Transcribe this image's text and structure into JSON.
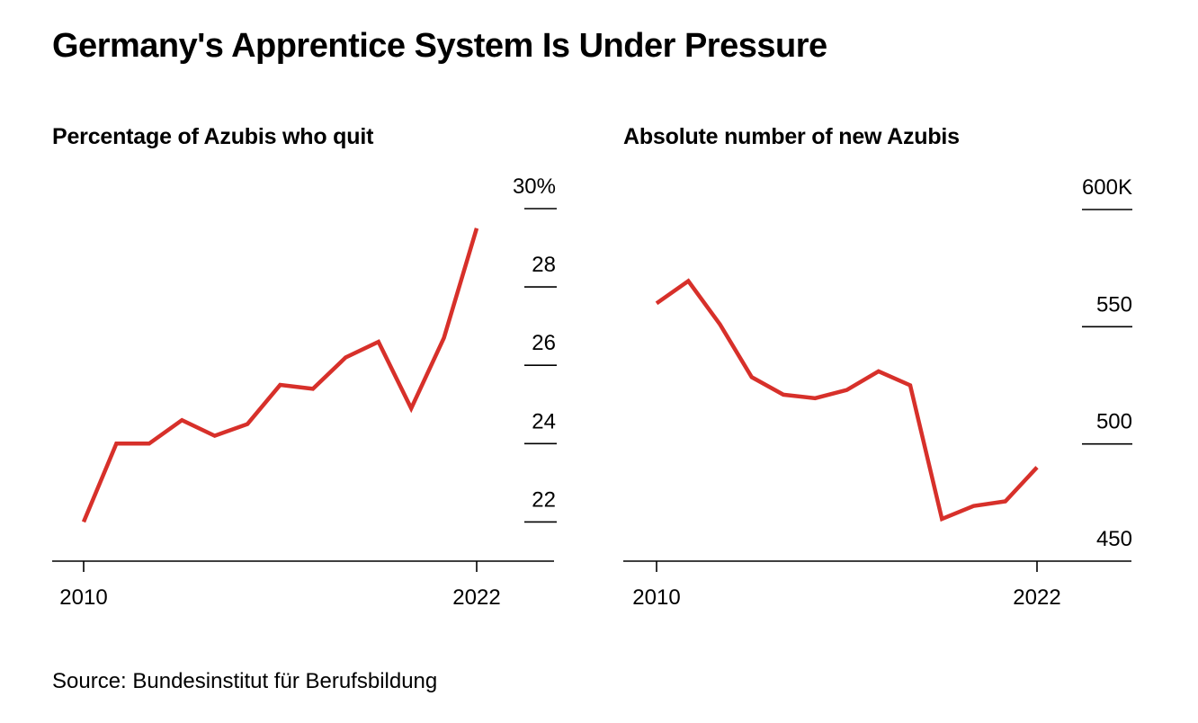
{
  "title": "Germany's Apprentice System Is Under Pressure",
  "source": "Source: Bundesinstitut für Berufsbildung",
  "colors": {
    "line": "#d7302a",
    "axis": "#000000",
    "text": "#000000"
  },
  "chart_data": [
    {
      "type": "line",
      "title": "Percentage of Azubis who quit",
      "xlabel": "",
      "ylabel": "",
      "x": [
        2010,
        2011,
        2012,
        2013,
        2014,
        2015,
        2016,
        2017,
        2018,
        2019,
        2020,
        2021,
        2022
      ],
      "values": [
        22.0,
        24.0,
        24.0,
        24.6,
        24.2,
        24.5,
        25.5,
        25.4,
        26.2,
        26.6,
        24.9,
        26.7,
        29.5
      ],
      "xlim": [
        2010,
        2022
      ],
      "ylim": [
        21,
        30
      ],
      "x_tick_labels": [
        {
          "x": 2010,
          "label": "2010"
        },
        {
          "x": 2022,
          "label": "2022"
        }
      ],
      "y_tick_labels": [
        {
          "y": 22,
          "label": "22"
        },
        {
          "y": 24,
          "label": "24"
        },
        {
          "y": 26,
          "label": "26"
        },
        {
          "y": 28,
          "label": "28"
        },
        {
          "y": 30,
          "label": "30%"
        }
      ],
      "grid": false
    },
    {
      "type": "line",
      "title": "Absolute number of new Azubis",
      "xlabel": "",
      "ylabel": "",
      "x": [
        2010,
        2011,
        2012,
        2013,
        2014,
        2015,
        2016,
        2017,
        2018,
        2019,
        2020,
        2021,
        2022
      ],
      "values": [
        560,
        569.5,
        551,
        528.5,
        521,
        519.5,
        523,
        531,
        525,
        468,
        473.5,
        475.5,
        490
      ],
      "xlim": [
        2010,
        2022
      ],
      "ylim": [
        450,
        600
      ],
      "x_tick_labels": [
        {
          "x": 2010,
          "label": "2010"
        },
        {
          "x": 2022,
          "label": "2022"
        }
      ],
      "y_tick_labels": [
        {
          "y": 450,
          "label": "450"
        },
        {
          "y": 500,
          "label": "500"
        },
        {
          "y": 550,
          "label": "550"
        },
        {
          "y": 600,
          "label": "600K"
        }
      ],
      "grid": false
    }
  ]
}
